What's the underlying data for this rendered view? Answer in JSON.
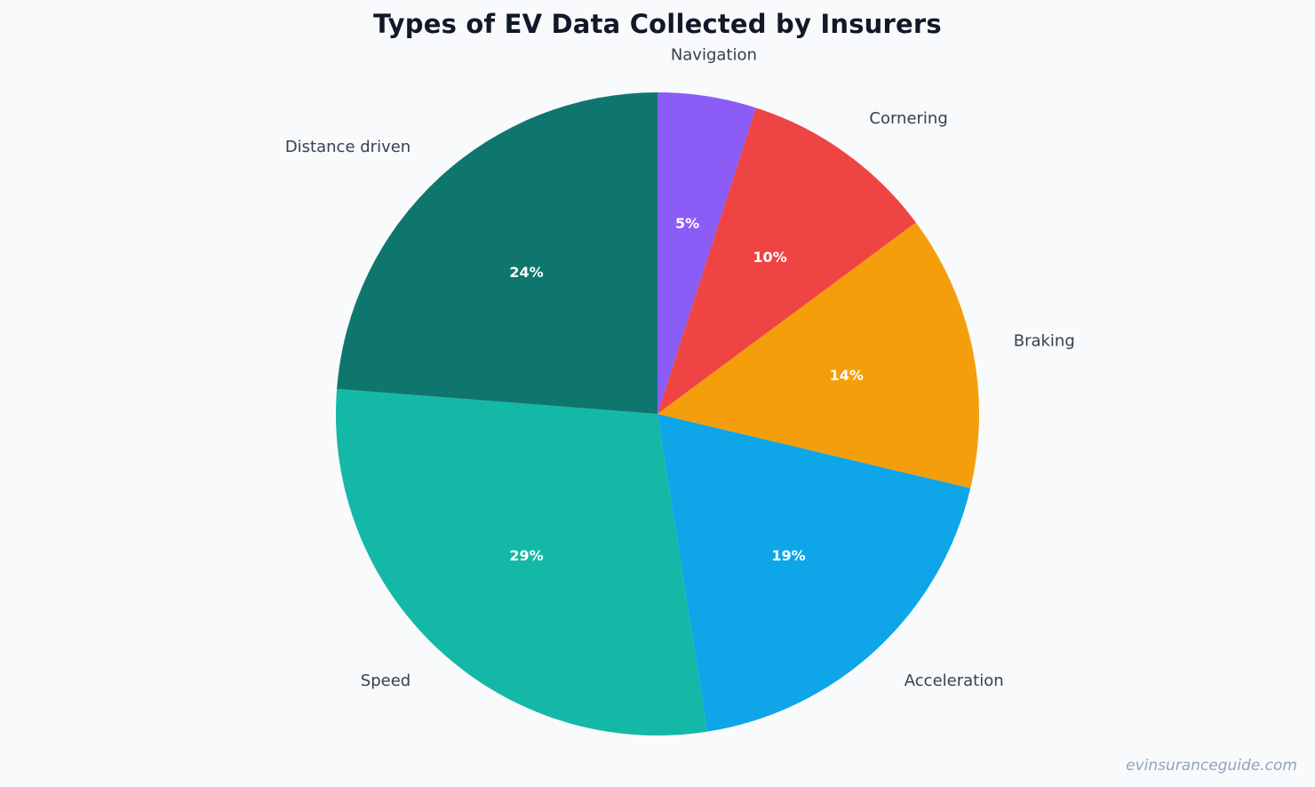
{
  "chart_data": {
    "type": "pie",
    "title": "Types of EV Data Collected by Insurers",
    "start": "top",
    "direction": "clockwise",
    "slices": [
      {
        "label": "Navigation",
        "value": 5,
        "pct_label": "5%",
        "color": "#8b5cf6"
      },
      {
        "label": "Cornering",
        "value": 10,
        "pct_label": "10%",
        "color": "#ef4444"
      },
      {
        "label": "Braking",
        "value": 14,
        "pct_label": "14%",
        "color": "#f59e0b"
      },
      {
        "label": "Acceleration",
        "value": 19,
        "pct_label": "19%",
        "color": "#0ea5e9"
      },
      {
        "label": "Speed",
        "value": 29,
        "pct_label": "29%",
        "color": "#14b8a6"
      },
      {
        "label": "Distance driven",
        "value": 24,
        "pct_label": "24%",
        "color": "#0f766e"
      }
    ]
  },
  "watermark": "evinsuranceguide.com"
}
